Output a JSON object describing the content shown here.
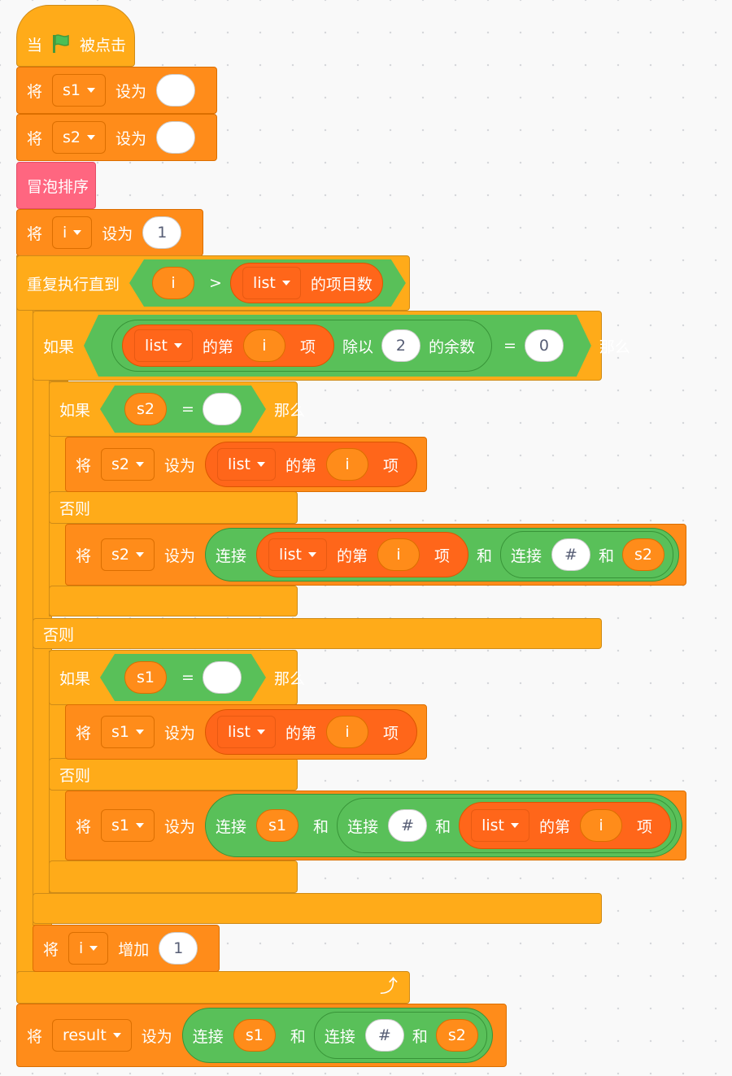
{
  "script": {
    "hat": {
      "when": "当",
      "clicked": "被点击"
    },
    "set_s1": {
      "label": "将",
      "var": "s1",
      "to": "设为",
      "value": ""
    },
    "set_s2": {
      "label": "将",
      "var": "s2",
      "to": "设为",
      "value": ""
    },
    "custom_block": {
      "label": "冒泡排序"
    },
    "set_i": {
      "label": "将",
      "var": "i",
      "to": "设为",
      "value": "1"
    },
    "repeat": {
      "label": "重复执行直到",
      "i": "i",
      "gt": ">",
      "list": "list",
      "length": "的项目数"
    },
    "if_outer": {
      "label": "如果",
      "list": "list",
      "item_of": "的第",
      "i": "i",
      "item": "项",
      "div": "除以",
      "divisor": "2",
      "mod": "的余数",
      "eq": "=",
      "zero": "0",
      "then": "那么"
    },
    "if_s2": {
      "label": "如果",
      "var": "s2",
      "eq": "=",
      "value": "",
      "then": "那么"
    },
    "set_s2_item": {
      "label": "将",
      "var": "s2",
      "to": "设为",
      "list": "list",
      "item_of": "的第",
      "i": "i",
      "item": "项"
    },
    "else1": "否则",
    "set_s2_join": {
      "label": "将",
      "var": "s2",
      "to": "设为",
      "join": "连接",
      "list": "list",
      "item_of": "的第",
      "i": "i",
      "item": "项",
      "and": "和",
      "join2": "连接",
      "hash": "#",
      "and2": "和",
      "s2": "s2"
    },
    "else_outer": "否则",
    "if_s1": {
      "label": "如果",
      "var": "s1",
      "eq": "=",
      "value": "",
      "then": "那么"
    },
    "set_s1_item": {
      "label": "将",
      "var": "s1",
      "to": "设为",
      "list": "list",
      "item_of": "的第",
      "i": "i",
      "item": "项"
    },
    "else2": "否则",
    "set_s1_join": {
      "label": "将",
      "var": "s1",
      "to": "设为",
      "join": "连接",
      "s1": "s1",
      "and": "和",
      "join2": "连接",
      "hash": "#",
      "and2": "和",
      "list": "list",
      "item_of": "的第",
      "i": "i",
      "item": "项"
    },
    "change_i": {
      "label": "将",
      "var": "i",
      "by": "增加",
      "value": "1"
    },
    "repeat_arrow": "⤴",
    "set_result": {
      "label": "将",
      "var": "result",
      "to": "设为",
      "join": "连接",
      "s1": "s1",
      "and": "和",
      "join2": "连接",
      "hash": "#",
      "and2": "和",
      "s2": "s2"
    }
  },
  "colors": {
    "events": "#ffab19",
    "variables": "#ff8c1a",
    "lists": "#ff661a",
    "operators": "#59c059",
    "custom": "#ff6680",
    "flag": "#4cbf56"
  }
}
